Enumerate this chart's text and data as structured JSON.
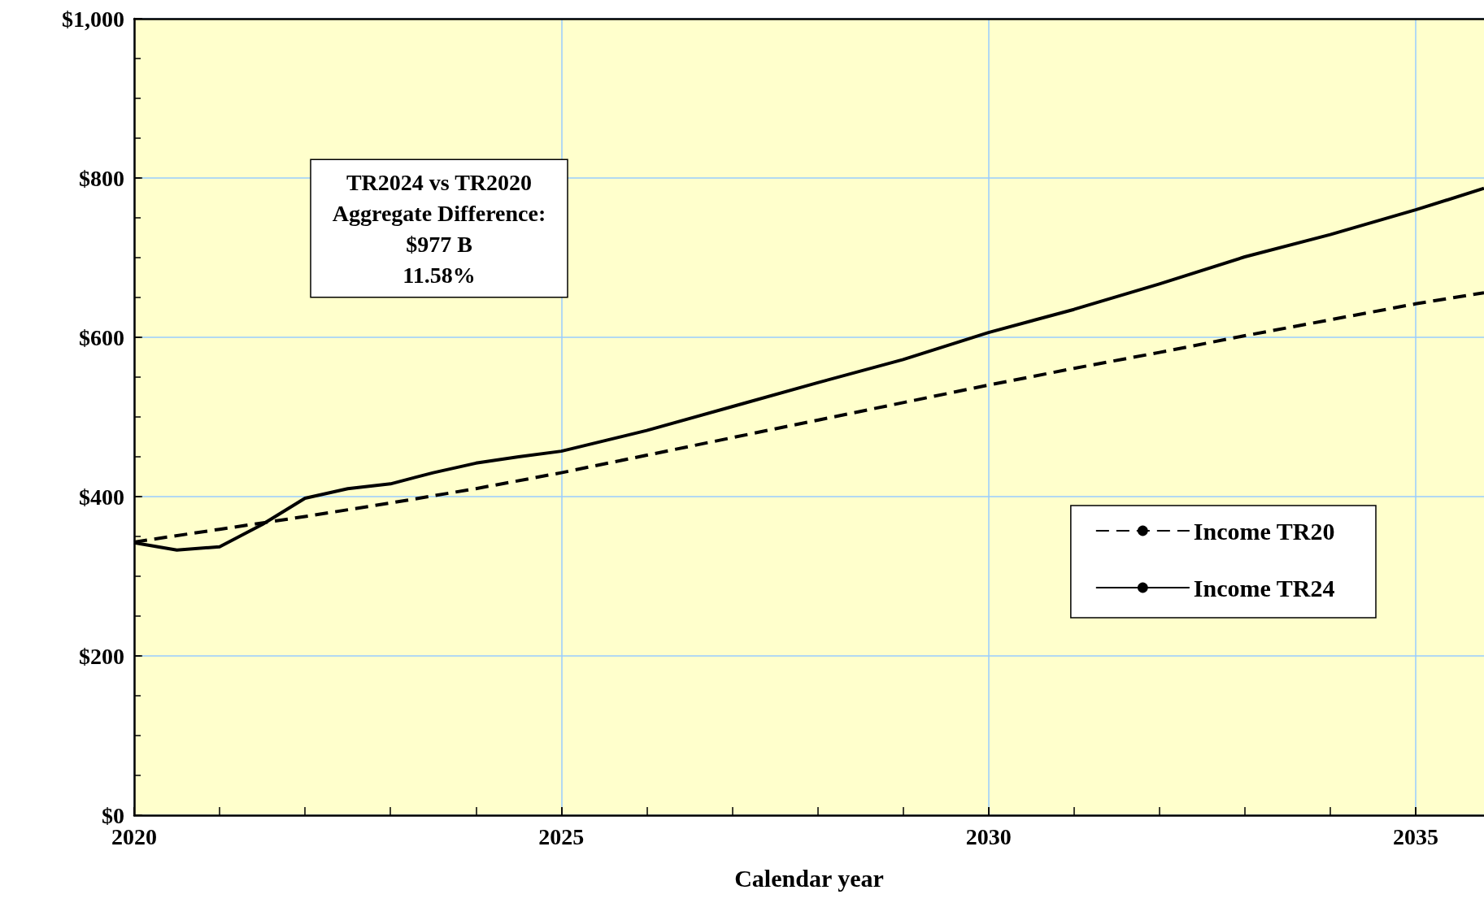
{
  "chart_data": {
    "type": "line",
    "xlabel": "Calendar year",
    "annotations": [
      "TR2024 vs TR2020\nAggregate Difference:\n$977 B\n11.58%"
    ],
    "series": [
      {
        "name": "Income TR20",
        "color": "#000000",
        "line_style": "dashed",
        "x": [
          2020,
          2021,
          2022,
          2023,
          2024,
          2025,
          2026,
          2027,
          2028,
          2029,
          2030,
          2031,
          2032,
          2033,
          2034,
          2035,
          2035.8
        ],
        "values": [
          343,
          359,
          375,
          392,
          410,
          430,
          452,
          474,
          496,
          518,
          540,
          561,
          581,
          602,
          622,
          642,
          656
        ]
      },
      {
        "name": "Income TR24",
        "color": "#000000",
        "line_style": "solid",
        "x": [
          2020,
          2020.5,
          2021,
          2021.5,
          2022,
          2022.5,
          2023,
          2023.5,
          2024,
          2024.5,
          2025,
          2026,
          2027,
          2028,
          2029,
          2030,
          2031,
          2032,
          2033,
          2034,
          2035,
          2035.8
        ],
        "values": [
          342,
          333,
          337,
          365,
          398,
          410,
          416,
          430,
          442,
          450,
          457,
          483,
          513,
          543,
          572,
          606,
          635,
          667,
          701,
          729,
          760,
          787
        ]
      }
    ],
    "xlim": [
      2020,
      2035.8
    ],
    "xticks": [
      2020,
      {
        "value": 2021,
        "label": null
      },
      {
        "value": 2022,
        "label": null
      },
      {
        "value": 2023,
        "label": null
      },
      {
        "value": 2024,
        "label": null
      },
      2025,
      {
        "value": 2026,
        "label": null
      },
      {
        "value": 2027,
        "label": null
      },
      {
        "value": 2028,
        "label": null
      },
      {
        "value": 2029,
        "label": null
      },
      2030,
      {
        "value": 2031,
        "label": null
      },
      {
        "value": 2032,
        "label": null
      },
      {
        "value": 2033,
        "label": null
      },
      {
        "value": 2034,
        "label": null
      },
      2035
    ],
    "ylim": [
      0,
      1000
    ],
    "yticks": [
      {
        "value": 0,
        "label": "$0"
      },
      {
        "value": 50,
        "label": null
      },
      {
        "value": 100,
        "label": null
      },
      {
        "value": 150,
        "label": null
      },
      {
        "value": 200,
        "label": "$200"
      },
      {
        "value": 250,
        "label": null
      },
      {
        "value": 300,
        "label": null
      },
      {
        "value": 350,
        "label": null
      },
      {
        "value": 400,
        "label": "$400"
      },
      {
        "value": 450,
        "label": null
      },
      {
        "value": 500,
        "label": null
      },
      {
        "value": 550,
        "label": null
      },
      {
        "value": 600,
        "label": "$600"
      },
      {
        "value": 650,
        "label": null
      },
      {
        "value": 700,
        "label": null
      },
      {
        "value": 750,
        "label": null
      },
      {
        "value": 800,
        "label": "$800"
      },
      {
        "value": 850,
        "label": null
      },
      {
        "value": 900,
        "label": null
      },
      {
        "value": 950,
        "label": null
      },
      {
        "value": 1000,
        "label": "$1,000"
      }
    ],
    "grid": true,
    "legend": "right",
    "marker": "none"
  }
}
